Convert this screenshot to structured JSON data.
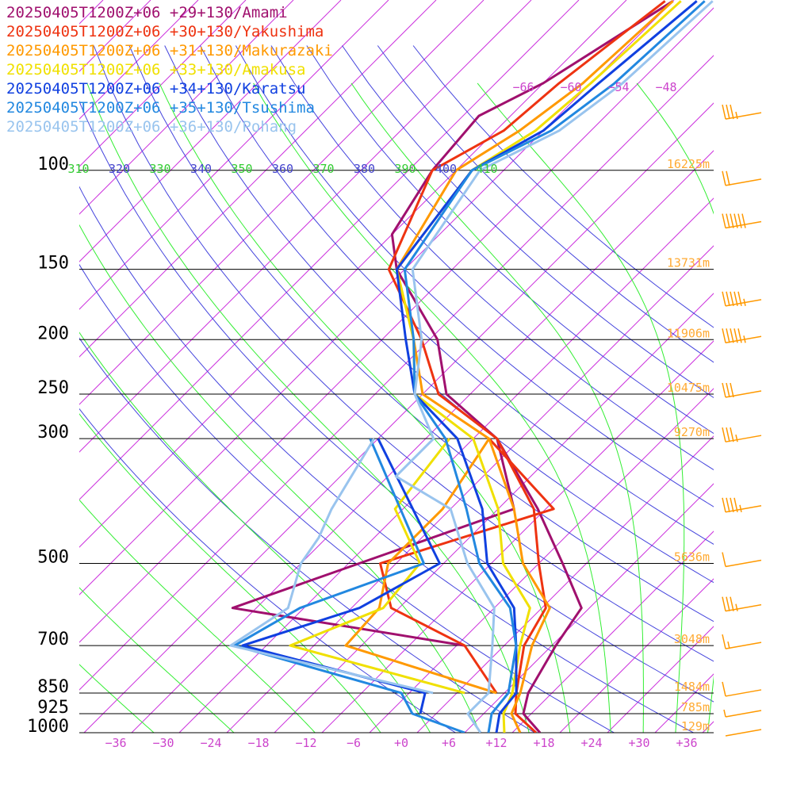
{
  "chart_data": {
    "type": "line",
    "title": "",
    "xlabel": "",
    "ylabel": "",
    "pressure_levels": [
      {
        "label": "100",
        "p": 100
      },
      {
        "label": "150",
        "p": 150
      },
      {
        "label": "200",
        "p": 200
      },
      {
        "label": "250",
        "p": 250
      },
      {
        "label": "300",
        "p": 300
      },
      {
        "label": "500",
        "p": 500
      },
      {
        "label": "700",
        "p": 700
      },
      {
        "label": "850",
        "p": 850
      },
      {
        "label": "925",
        "p": 925
      },
      {
        "label": "1000",
        "p": 1000
      }
    ],
    "height_labels": [
      {
        "label": "16225m",
        "p": 100
      },
      {
        "label": "13731m",
        "p": 150
      },
      {
        "label": "11906m",
        "p": 200
      },
      {
        "label": "10475m",
        "p": 250
      },
      {
        "label": "9270m",
        "p": 300
      },
      {
        "label": "5636m",
        "p": 500
      },
      {
        "label": "3048m",
        "p": 700
      },
      {
        "label": "1484m",
        "p": 850
      },
      {
        "label": "785m",
        "p": 925
      },
      {
        "label": "129m",
        "p": 1000
      }
    ],
    "x_ticks": [
      "−36",
      "−30",
      "−24",
      "−18",
      "−12",
      "−6",
      "+0",
      "+6",
      "+12",
      "+18",
      "+24",
      "+30",
      "+36"
    ],
    "x_tick_values": [
      -36,
      -30,
      -24,
      -18,
      -12,
      -6,
      0,
      6,
      12,
      18,
      24,
      30,
      36
    ],
    "upper_temp_labels": [
      {
        "label": "−66",
        "t": -66
      },
      {
        "label": "−60",
        "t": -60
      },
      {
        "label": "−54",
        "t": -54
      },
      {
        "label": "−48",
        "t": -48
      }
    ],
    "theta_labels": [
      "310",
      "320",
      "330",
      "340",
      "350",
      "360",
      "370",
      "380",
      "390",
      "400",
      "410"
    ],
    "theta_values": [
      310,
      320,
      330,
      340,
      350,
      360,
      370,
      380,
      390,
      400,
      410
    ],
    "series": [
      {
        "name": "20250405T1200Z+06 +29+130/Amami",
        "color": "#a0106e",
        "temperature": [
          [
            1000,
            17.5
          ],
          [
            925,
            13
          ],
          [
            850,
            11
          ],
          [
            700,
            8.5
          ],
          [
            600,
            7
          ],
          [
            500,
            -1
          ],
          [
            400,
            -11
          ],
          [
            300,
            -25
          ],
          [
            250,
            -37
          ],
          [
            200,
            -45
          ],
          [
            150,
            -59
          ],
          [
            130,
            -64
          ],
          [
            100,
            -67
          ],
          [
            80,
            -68
          ],
          [
            70,
            -64
          ],
          [
            50,
            -58
          ]
        ],
        "dewpoint": [
          [
            700,
            -3
          ],
          [
            600,
            -37
          ],
          [
            400,
            -14
          ],
          [
            300,
            -25
          ]
        ]
      },
      {
        "name": "20250405T1200Z+06 +30+130/Yakushima",
        "color": "#ee3311",
        "temperature": [
          [
            1000,
            17
          ],
          [
            925,
            12
          ],
          [
            850,
            9.5
          ],
          [
            700,
            4.5
          ],
          [
            600,
            2.5
          ],
          [
            500,
            -4
          ],
          [
            400,
            -11.5
          ],
          [
            300,
            -25
          ],
          [
            250,
            -38
          ],
          [
            200,
            -47
          ],
          [
            150,
            -60
          ],
          [
            100,
            -67
          ],
          [
            85,
            -63
          ],
          [
            70,
            -62
          ],
          [
            50,
            -59
          ]
        ],
        "dewpoint": [
          [
            850,
            7
          ],
          [
            700,
            -3
          ],
          [
            600,
            -17
          ],
          [
            500,
            -24
          ],
          [
            400,
            -9
          ],
          [
            300,
            -26
          ]
        ]
      },
      {
        "name": "20250405T1200Z+06 +31+130/Makurazaki",
        "color": "#ff9900",
        "temperature": [
          [
            1000,
            15
          ],
          [
            925,
            11.5
          ],
          [
            850,
            10
          ],
          [
            700,
            5.5
          ],
          [
            600,
            3
          ],
          [
            500,
            -6
          ],
          [
            400,
            -14
          ],
          [
            300,
            -26
          ],
          [
            250,
            -40
          ],
          [
            200,
            -48
          ],
          [
            150,
            -59
          ],
          [
            100,
            -64
          ],
          [
            85,
            -61
          ],
          [
            70,
            -59
          ],
          [
            50,
            -58
          ]
        ],
        "dewpoint": [
          [
            850,
            7
          ],
          [
            700,
            -18
          ],
          [
            600,
            -18.5
          ],
          [
            500,
            -23
          ],
          [
            400,
            -23
          ],
          [
            300,
            -26
          ]
        ]
      },
      {
        "name": "20250405T1200Z+06 +33+130/Amakusa",
        "color": "#f0e000",
        "temperature": [
          [
            1000,
            13
          ],
          [
            925,
            10.5
          ],
          [
            850,
            9
          ],
          [
            700,
            4
          ],
          [
            600,
            0.5
          ],
          [
            500,
            -8.5
          ],
          [
            400,
            -16
          ],
          [
            300,
            -28
          ],
          [
            250,
            -41
          ],
          [
            200,
            -48
          ],
          [
            150,
            -59
          ],
          [
            100,
            -62
          ],
          [
            85,
            -59
          ],
          [
            70,
            -58
          ],
          [
            50,
            -57
          ]
        ],
        "dewpoint": [
          [
            850,
            3
          ],
          [
            700,
            -25
          ],
          [
            600,
            -18
          ],
          [
            500,
            -19
          ],
          [
            400,
            -29
          ],
          [
            300,
            -31
          ]
        ]
      },
      {
        "name": "20250405T1200Z+06 +34+130/Karatsu",
        "color": "#1040e0",
        "temperature": [
          [
            1000,
            12
          ],
          [
            925,
            10
          ],
          [
            850,
            9.5
          ],
          [
            700,
            3.5
          ],
          [
            600,
            -1.5
          ],
          [
            500,
            -10.5
          ],
          [
            400,
            -18
          ],
          [
            300,
            -30
          ],
          [
            250,
            -41
          ],
          [
            200,
            -49
          ],
          [
            150,
            -59
          ],
          [
            100,
            -62
          ],
          [
            85,
            -58
          ],
          [
            70,
            -57
          ],
          [
            50,
            -55
          ]
        ],
        "dewpoint": [
          [
            925,
            0
          ],
          [
            850,
            -2
          ],
          [
            700,
            -31
          ],
          [
            600,
            -21
          ],
          [
            500,
            -16.5
          ],
          [
            300,
            -40
          ]
        ]
      },
      {
        "name": "20250405T1200Z+06 +35+130/Tsushima",
        "color": "#2288e0",
        "temperature": [
          [
            1000,
            11
          ],
          [
            925,
            9
          ],
          [
            850,
            8.5
          ],
          [
            700,
            3.5
          ],
          [
            600,
            -2
          ],
          [
            500,
            -11.5
          ],
          [
            400,
            -20
          ],
          [
            300,
            -31.5
          ],
          [
            250,
            -41
          ],
          [
            200,
            -48
          ],
          [
            150,
            -58
          ],
          [
            100,
            -62
          ],
          [
            85,
            -57
          ],
          [
            70,
            -55
          ],
          [
            50,
            -54
          ]
        ],
        "dewpoint": [
          [
            1000,
            8
          ],
          [
            925,
            -1
          ],
          [
            850,
            -5
          ],
          [
            700,
            -32
          ],
          [
            600,
            -28.5
          ],
          [
            500,
            -18.5
          ],
          [
            300,
            -41
          ]
        ]
      },
      {
        "name": "20250405T1200Z+06 +36+130/Pohang",
        "color": "#99c4ee",
        "temperature": [
          [
            1000,
            10
          ],
          [
            925,
            6
          ],
          [
            850,
            6
          ],
          [
            700,
            0.5
          ],
          [
            600,
            -4
          ],
          [
            500,
            -13
          ],
          [
            400,
            -22
          ],
          [
            350,
            -33
          ],
          [
            300,
            -33
          ],
          [
            250,
            -41
          ],
          [
            200,
            -47
          ],
          [
            150,
            -57
          ],
          [
            100,
            -61
          ],
          [
            85,
            -56
          ],
          [
            70,
            -54
          ],
          [
            50,
            -53
          ]
        ],
        "dewpoint": [
          [
            850,
            -1
          ],
          [
            700,
            -32.5
          ],
          [
            600,
            -30
          ],
          [
            500,
            -34
          ],
          [
            450,
            -35
          ],
          [
            400,
            -37
          ],
          [
            300,
            -40.5
          ]
        ]
      }
    ],
    "wind_barbs": [
      {
        "p": 80,
        "speed": 35
      },
      {
        "p": 105,
        "speed": 20
      },
      {
        "p": 125,
        "speed": 60
      },
      {
        "p": 172,
        "speed": 55
      },
      {
        "p": 200,
        "speed": 55
      },
      {
        "p": 250,
        "speed": 30
      },
      {
        "p": 300,
        "speed": 35
      },
      {
        "p": 400,
        "speed": 45
      },
      {
        "p": 500,
        "speed": 10
      },
      {
        "p": 600,
        "speed": 35
      },
      {
        "p": 700,
        "speed": 15
      },
      {
        "p": 850,
        "speed": 10
      },
      {
        "p": 925,
        "speed": 5
      },
      {
        "p": 1000,
        "speed": 0
      }
    ],
    "colors": {
      "isotherm": "#cc33dd",
      "dry_adiabat": "#4444dd",
      "moist_adiabat": "#33ee33",
      "isobar": "#000000",
      "tick_label": "#cc44cc",
      "height_label": "#ffaa33",
      "wind_barb": "#ff9900",
      "theta_label_blue": "#4444cc",
      "theta_label_green": "#33cc33"
    }
  }
}
